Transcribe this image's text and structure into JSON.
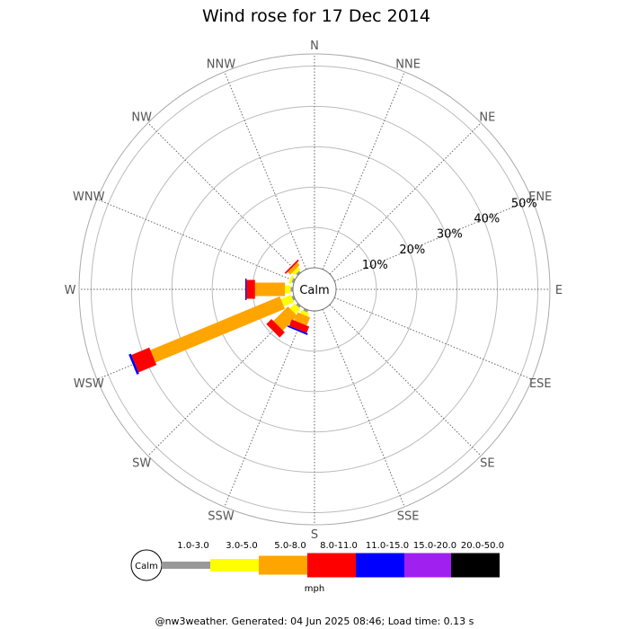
{
  "chart_data": {
    "type": "wind-rose",
    "title": "Wind rose for 17 Dec 2014",
    "unit": "mph",
    "calm_label": "Calm",
    "directions": [
      "N",
      "NNE",
      "NE",
      "ENE",
      "E",
      "ESE",
      "SE",
      "SSE",
      "S",
      "SSW",
      "SW",
      "WSW",
      "W",
      "WNW",
      "NW",
      "NNW"
    ],
    "rings": [
      10,
      20,
      30,
      40,
      50
    ],
    "ring_labels": [
      "10%",
      "20%",
      "30%",
      "40%",
      "50%"
    ],
    "max_percent": 53,
    "speed_bins": [
      {
        "label": "1.0-3.0",
        "color": "#999999"
      },
      {
        "label": "3.0-5.0",
        "color": "#ffff00"
      },
      {
        "label": "5.0-8.0",
        "color": "#ffa500"
      },
      {
        "label": "8.0-11.0",
        "color": "#ff0000"
      },
      {
        "label": "11.0-15.0",
        "color": "#0000ff"
      },
      {
        "label": "15.0-20.0",
        "color": "#a020f0"
      },
      {
        "label": "20.0-50.0",
        "color": "#000000"
      }
    ],
    "series": [
      {
        "direction": "W",
        "cumulative": [
          0.6,
          2.0,
          9.4,
          11.5,
          11.8
        ]
      },
      {
        "direction": "WSW",
        "cumulative": [
          0.6,
          3.3,
          38.0,
          42.8,
          43.4
        ]
      },
      {
        "direction": "SW",
        "cumulative": [
          0.6,
          2.3,
          7.4,
          9.2
        ]
      },
      {
        "direction": "SSW",
        "cumulative": [
          0.6,
          1.5,
          3.7,
          5.4,
          5.8
        ]
      },
      {
        "direction": "S",
        "cumulative": []
      },
      {
        "direction": "SSE",
        "cumulative": []
      },
      {
        "direction": "SE",
        "cumulative": []
      },
      {
        "direction": "ESE",
        "cumulative": []
      },
      {
        "direction": "E",
        "cumulative": []
      },
      {
        "direction": "ENE",
        "cumulative": []
      },
      {
        "direction": "NE",
        "cumulative": []
      },
      {
        "direction": "NNE",
        "cumulative": []
      },
      {
        "direction": "N",
        "cumulative": []
      },
      {
        "direction": "NNW",
        "cumulative": []
      },
      {
        "direction": "NW",
        "cumulative": [
          0.6,
          1.5,
          2.4,
          2.8
        ]
      },
      {
        "direction": "WNW",
        "cumulative": [
          0.6,
          1.2
        ]
      }
    ]
  },
  "footer": "@nw3weather. Generated: 04 Jun 2025 08:46; Load time: 0.13 s"
}
